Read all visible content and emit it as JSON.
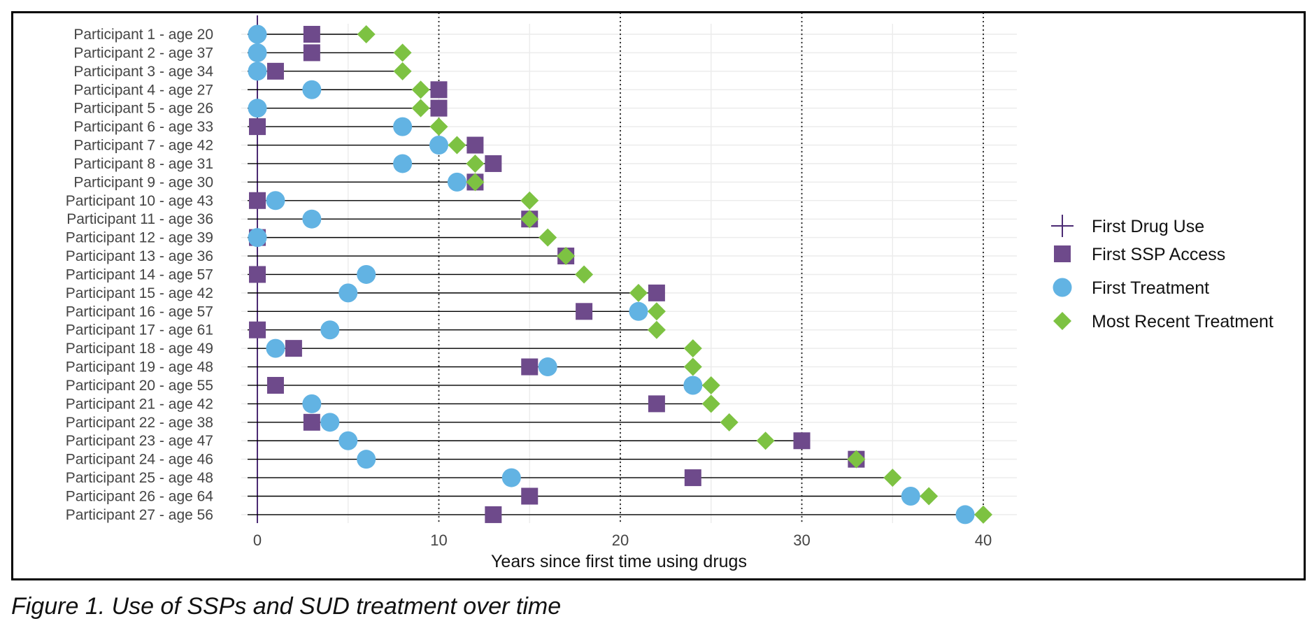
{
  "caption": "Figure 1. Use of SSPs and SUD treatment over time",
  "colors": {
    "first_drug_use": "#4b2a73",
    "first_ssp_access": "#6e4a8b",
    "first_treatment": "#62b3e3",
    "most_recent_treatment": "#7dc242",
    "gridline": "#ececec",
    "reference_line": "#222222",
    "segment": "#000000"
  },
  "legend": [
    {
      "key": "first_drug_use",
      "label": "First Drug Use",
      "icon": "plus-icon"
    },
    {
      "key": "first_ssp_access",
      "label": "First SSP Access",
      "icon": "square-icon"
    },
    {
      "key": "first_treatment",
      "label": "First Treatment",
      "icon": "circle-icon"
    },
    {
      "key": "most_recent_treatment",
      "label": "Most Recent Treatment",
      "icon": "diamond-icon"
    }
  ],
  "chart_data": {
    "type": "scatter",
    "title": "",
    "xlabel": "Years since first time using drugs",
    "ylabel": "",
    "xlim": [
      0,
      40
    ],
    "x_ticks": [
      0,
      10,
      20,
      30,
      40
    ],
    "reference_lines_x": [
      10,
      20,
      30,
      40
    ],
    "grid": true,
    "legend_position": "right",
    "categories": [
      "Participant 1 - age 20",
      "Participant 2 - age 37",
      "Participant 3 - age 34",
      "Participant 4 - age 27",
      "Participant 5 - age 26",
      "Participant 6 - age 33",
      "Participant 7 - age 42",
      "Participant 8 - age 31",
      "Participant 9 - age 30",
      "Participant 10 - age 43",
      "Participant 11 - age 36",
      "Participant 12 - age 39",
      "Participant 13 - age 36",
      "Participant 14 - age 57",
      "Participant 15 - age 42",
      "Participant 16 - age 57",
      "Participant 17 - age 61",
      "Participant 18 - age 49",
      "Participant 19 - age 48",
      "Participant 20 - age 55",
      "Participant 21 - age 42",
      "Participant 22 - age 38",
      "Participant 23 - age 47",
      "Participant 24 - age 46",
      "Participant 25 - age 48",
      "Participant 26 - age 64",
      "Participant 27 - age 56"
    ],
    "series": [
      {
        "key": "first_drug_use",
        "name": "First Drug Use",
        "values": [
          0,
          0,
          0,
          0,
          0,
          0,
          0,
          0,
          0,
          0,
          0,
          0,
          0,
          0,
          0,
          0,
          0,
          0,
          0,
          0,
          0,
          0,
          0,
          0,
          0,
          0,
          0
        ]
      },
      {
        "key": "first_ssp_access",
        "name": "First SSP Access",
        "values": [
          3,
          3,
          1,
          10,
          10,
          0,
          12,
          13,
          12,
          0,
          15,
          0,
          17,
          0,
          22,
          18,
          0,
          2,
          15,
          1,
          22,
          3,
          30,
          33,
          24,
          15,
          13
        ]
      },
      {
        "key": "first_treatment",
        "name": "First Treatment",
        "values": [
          0,
          0,
          0,
          3,
          0,
          8,
          10,
          8,
          11,
          1,
          3,
          0,
          null,
          6,
          5,
          21,
          4,
          1,
          16,
          24,
          3,
          4,
          5,
          6,
          14,
          36,
          39
        ]
      },
      {
        "key": "most_recent_treatment",
        "name": "Most Recent Treatment",
        "values": [
          6,
          8,
          8,
          9,
          9,
          10,
          11,
          12,
          12,
          15,
          15,
          16,
          17,
          18,
          21,
          22,
          22,
          24,
          24,
          25,
          25,
          26,
          28,
          33,
          35,
          37,
          40
        ]
      }
    ]
  }
}
